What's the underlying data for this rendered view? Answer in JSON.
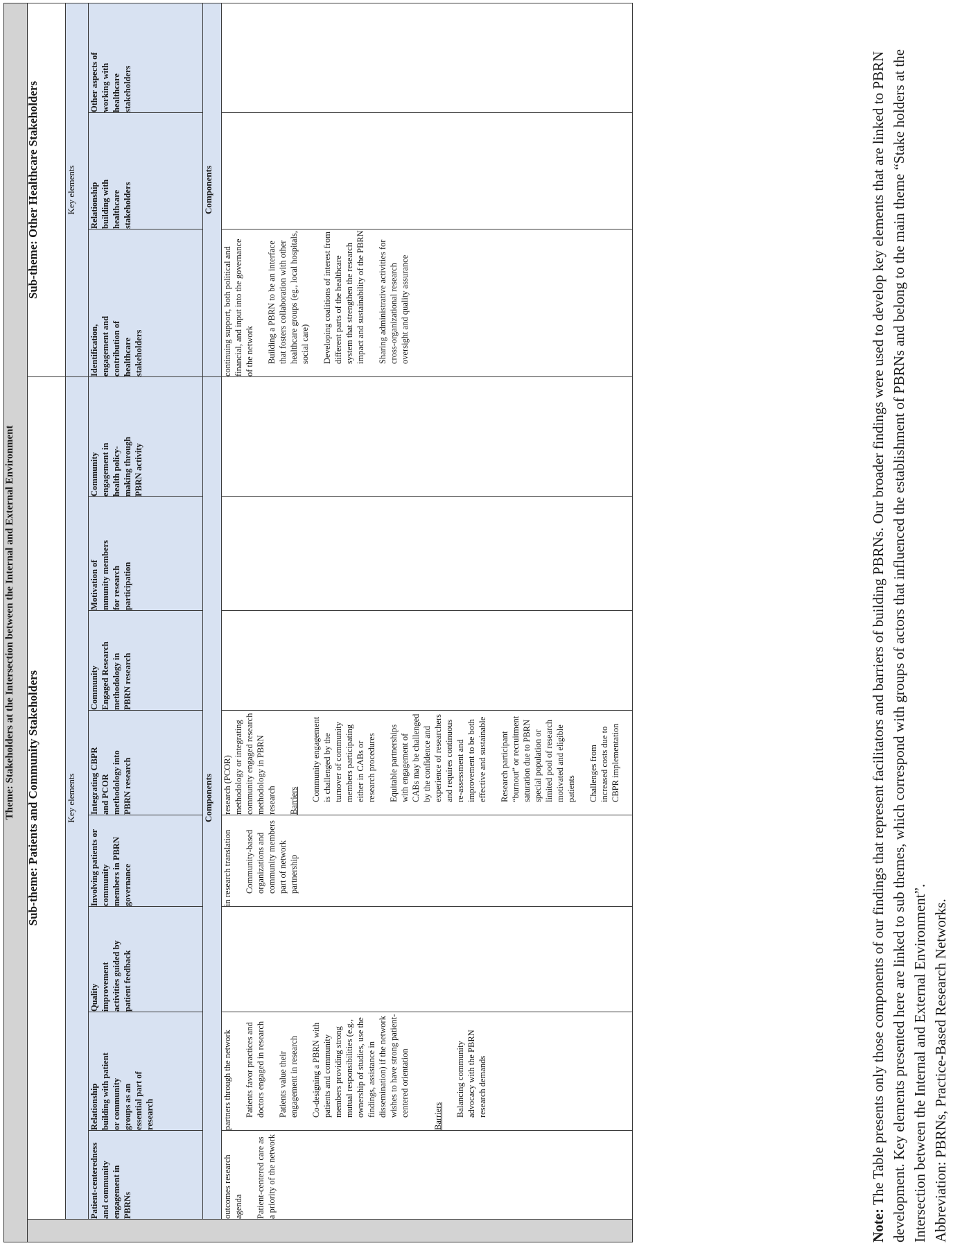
{
  "theme": "Theme: Stakeholders at the Intersection between the Internal and External Environment",
  "subthemes": {
    "patients": "Sub-theme: Patients and Community Stakeholders",
    "healthcare": "Sub-theme: Other Healthcare Stakeholders"
  },
  "key_elements_label": "Key elements",
  "components_label": "Components",
  "columns": [
    {
      "header": "Patient-centeredness and community engagement in PBRNs"
    },
    {
      "header": "Relationship building with patient or community groups as an essential part of research"
    },
    {
      "header": "Quality improvement activities guided by patient feedback"
    },
    {
      "header": "Involving patients or community members in PBRN governance"
    },
    {
      "header": "Integrating CBPR and PCOR methodology into PBRN research"
    },
    {
      "header": "Community Engaged Research methodology in PBRN research"
    },
    {
      "header": "Motivation of mmunity members for research participation"
    },
    {
      "header": "Community engagement in health policy-making through PBRN activity"
    },
    {
      "header": "Identification, engagement and contribution of healthcare stakeholders"
    },
    {
      "header": "Relationship building with healthcare stakeholders"
    },
    {
      "header": "Other aspects of working with healthcare stakeholders"
    }
  ],
  "components": {
    "c0": [
      "outcomes research agenda",
      "Patient-centered care as a priority of the network"
    ],
    "c1": [
      "partners through the network",
      "Patients favor practices and doctors engaged in research",
      "Patients value their engagement in research",
      "Co-designing a PBRN with patients and community members providing strong mutual responsibilities (e.g., ownership of studies, use the findings, assistance in dissemination) if the network wishes to have strong patient-centered orientation"
    ],
    "c1_barriers_label": "Barriers",
    "c1_barriers": [
      "Balancing community advocacy with the PBRN research demands"
    ],
    "c3": [
      "in research translation",
      "Community-based organizations and community members part of network partnership"
    ],
    "c4": [
      "research (PCOR) methodology or integrating community engaged research methodology in PBRN research"
    ],
    "c4_barriers_label": "Barriers",
    "c4_barriers": [
      "Community engagement is challenged by the turnover of community members participating either in CABs or research procedures",
      "Equitable partnerships with engagement of CABs may be challenged by the confidence and experience of researchers and requires continuous re-assessment and improvement to be both effective and sustainable",
      "Research participant “burnout” or recruitment saturation due to PBRN special population or limited pool of research motivated and eligible patients",
      "Challenges from increased costs due to CBPR implementation"
    ],
    "c8": [
      "continuing support, both political and financial, and input into the governance of the network",
      "Building a PBRN to be an interface that fosters collaboration with other healthcare groups (eg., local hospitals, social care)",
      "Developing coalitions of interest from different parts of the healthcare system that strengthen the research impact and sustainability of the PBRN",
      "Sharing administrative activities for cross-organizational research oversight and quality assurance"
    ]
  },
  "note": {
    "label": "Note:",
    "text": " The Table presents only those components of our findings that represent facilitators and barriers of building PBRNs. Our broader findings were used to develop key elements that are linked to PBRN development. Key elements presented here are linked to sub themes, which correspond with groups of actors that influenced the establishment of PBRNs and belong to the main theme “Stake holders at the Intersection between the Internal and External Environment”.",
    "abbrev": "Abbreviation: PBRNs, Practice-Based Research Networks."
  }
}
